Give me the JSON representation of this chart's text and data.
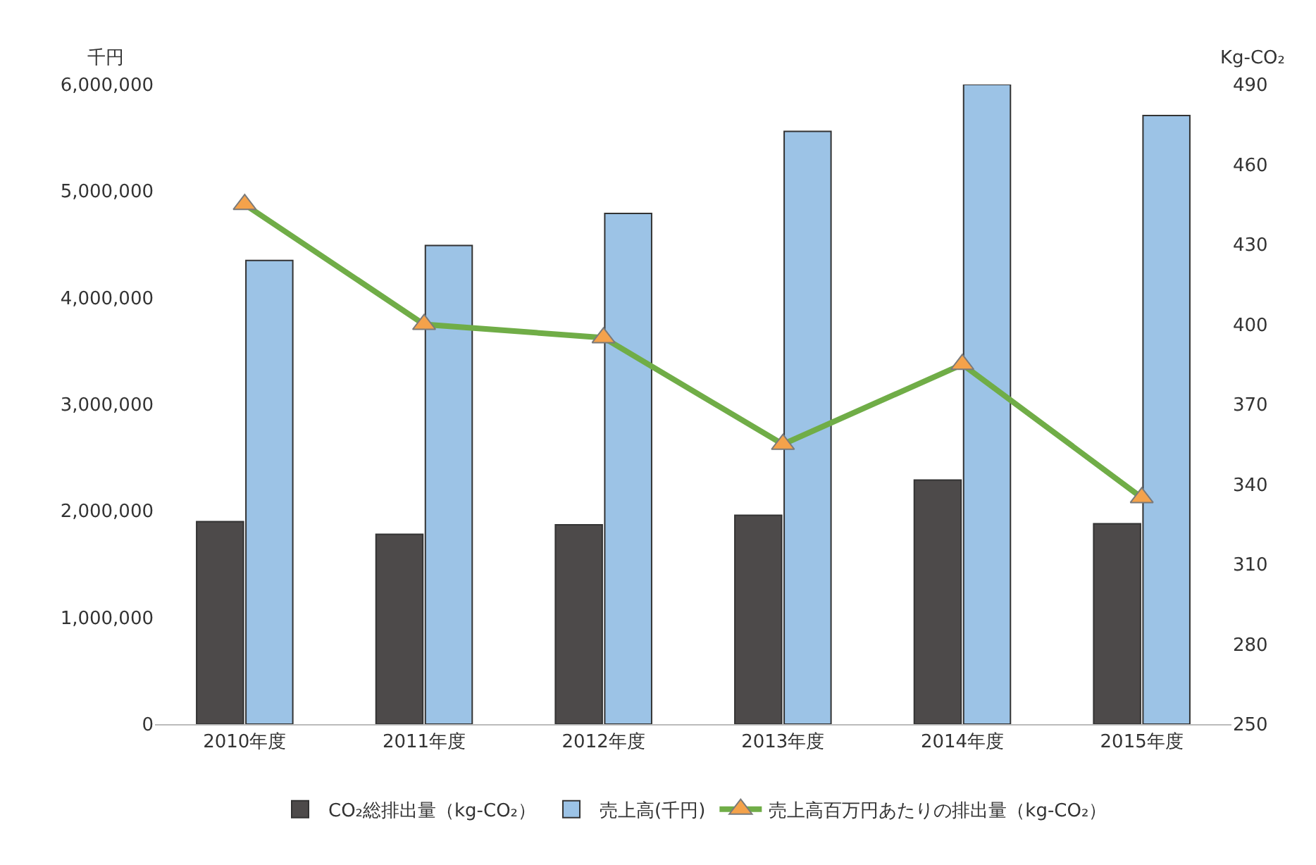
{
  "chart_data": {
    "type": "bar",
    "ylabel": "千円",
    "y2label": "Kg-CO₂",
    "categories": [
      "2010年度",
      "2011年度",
      "2012年度",
      "2013年度",
      "2014年度",
      "2015年度"
    ],
    "series": [
      {
        "name": "CO₂総排出量（kg-CO₂）",
        "color": "#4d4a4a",
        "values": [
          1900000,
          1780000,
          1870000,
          1960000,
          2290000,
          1880000
        ]
      },
      {
        "name": "売上高(千円)",
        "color": "#9cc3e6",
        "values": [
          4350000,
          4490000,
          4790000,
          5560000,
          6000000,
          5710000
        ]
      },
      {
        "name": "売上高百万円あたりの排出量（kg-CO₂）",
        "type": "line",
        "axis": "y2",
        "color": "#70ad47",
        "values": [
          445,
          400,
          395,
          355,
          385,
          335
        ]
      }
    ],
    "ylim": [
      0,
      6000000
    ],
    "yticks": [
      {
        "value": 0,
        "label": "0"
      },
      {
        "value": 1000000,
        "label": "1,000,000"
      },
      {
        "value": 2000000,
        "label": "2,000,000"
      },
      {
        "value": 3000000,
        "label": "3,000,000"
      },
      {
        "value": 4000000,
        "label": "4,000,000"
      },
      {
        "value": 5000000,
        "label": "5,000,000"
      },
      {
        "value": 6000000,
        "label": "6,000,000"
      }
    ],
    "y2lim": [
      250,
      490
    ],
    "y2ticks": [
      250,
      280,
      310,
      340,
      370,
      400,
      430,
      460,
      490
    ],
    "grid": false,
    "legend": "bottom",
    "marker": "triangle"
  }
}
